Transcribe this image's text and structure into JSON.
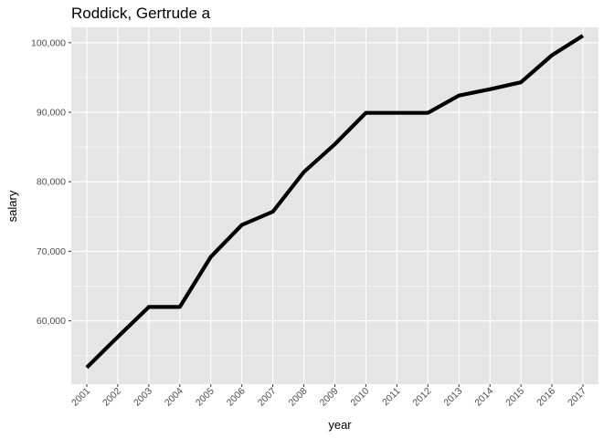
{
  "chart_data": {
    "type": "line",
    "title": "Roddick, Gertrude a",
    "xlabel": "year",
    "ylabel": "salary",
    "x": [
      2001,
      2002,
      2003,
      2004,
      2005,
      2006,
      2007,
      2008,
      2009,
      2010,
      2011,
      2012,
      2013,
      2014,
      2015,
      2016,
      2017
    ],
    "series": [
      {
        "values": [
          53300,
          57700,
          62000,
          62000,
          69200,
          73800,
          75700,
          81400,
          85400,
          89900,
          89900,
          89900,
          92400,
          93300,
          94300,
          98200,
          101000
        ]
      }
    ],
    "xlim": [
      2000.5,
      2017.5
    ],
    "ylim": [
      50900,
      102200
    ],
    "yticks": [
      60000,
      70000,
      80000,
      90000,
      100000
    ],
    "ytick_labels": [
      "60,000",
      "70,000",
      "80,000",
      "90,000",
      "100,000"
    ],
    "xtick_labels": [
      "2001",
      "2002",
      "2003",
      "2004",
      "2005",
      "2006",
      "2007",
      "2008",
      "2009",
      "2010",
      "2011",
      "2012",
      "2013",
      "2014",
      "2015",
      "2016",
      "2017"
    ],
    "grid": true,
    "legend": "none",
    "colors": {
      "panel": "#e5e5e5",
      "grid": "#ffffff",
      "line": "#000000",
      "tick_text": "#4d4d4d"
    }
  }
}
